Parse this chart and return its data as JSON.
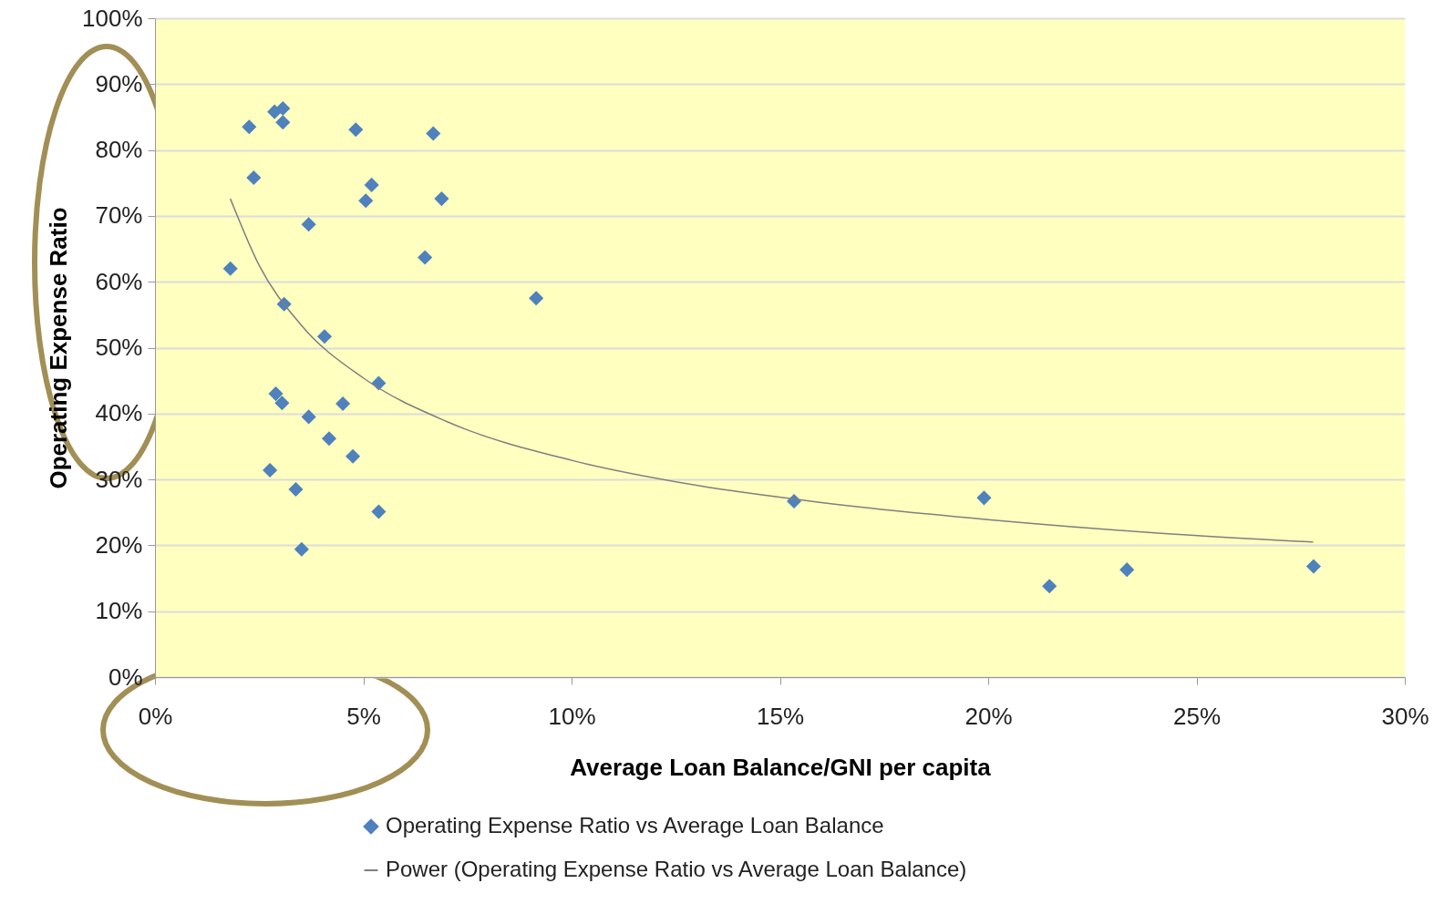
{
  "chart_data": {
    "type": "scatter",
    "xlabel": "Average Loan Balance/GNI per capita",
    "ylabel": "Operating Expense Ratio",
    "xlim": [
      0,
      30
    ],
    "xticks": [
      {
        "value": 0,
        "label": "0%"
      },
      {
        "value": 5,
        "label": "5%"
      },
      {
        "value": 10,
        "label": "10%"
      },
      {
        "value": 15,
        "label": "15%"
      },
      {
        "value": 20,
        "label": "20%"
      },
      {
        "value": 25,
        "label": "25%"
      },
      {
        "value": 30,
        "label": "30%"
      }
    ],
    "ylim": [
      0,
      100
    ],
    "yticks": [
      {
        "value": 0,
        "label": "0%"
      },
      {
        "value": 10,
        "label": "10%"
      },
      {
        "value": 20,
        "label": "20%"
      },
      {
        "value": 30,
        "label": "30%"
      },
      {
        "value": 40,
        "label": "40%"
      },
      {
        "value": 50,
        "label": "50%"
      },
      {
        "value": 60,
        "label": "60%"
      },
      {
        "value": 70,
        "label": "70%"
      },
      {
        "value": 80,
        "label": "80%"
      },
      {
        "value": 90,
        "label": "90%"
      },
      {
        "value": 100,
        "label": "100%"
      }
    ],
    "grid": "y",
    "legend": "bottom",
    "series": [
      {
        "name": "Operating Expense Ratio vs Average Loan Balance",
        "marker": "diamond",
        "color": "#4f81bd",
        "x": [
          1.81,
          2.26,
          2.37,
          2.87,
          3.07,
          3.07,
          3.1,
          2.76,
          2.9,
          3.05,
          3.38,
          3.52,
          3.69,
          3.69,
          4.07,
          4.18,
          4.51,
          4.75,
          4.82,
          5.06,
          5.2,
          5.37,
          5.37,
          6.48,
          6.68,
          6.88,
          9.15,
          15.34,
          19.9,
          21.47,
          23.33,
          27.81
        ],
        "values": [
          62.0,
          83.5,
          75.8,
          85.8,
          86.3,
          84.2,
          56.6,
          31.4,
          43.0,
          41.6,
          28.5,
          19.4,
          68.7,
          39.5,
          51.7,
          36.2,
          41.5,
          33.5,
          83.1,
          72.3,
          74.7,
          44.6,
          25.1,
          63.7,
          82.5,
          72.6,
          57.5,
          26.7,
          27.2,
          13.8,
          16.3,
          16.8
        ]
      },
      {
        "name": "Power (Operating Expense Ratio vs Average Loan Balance)",
        "type": "line",
        "marker": "none",
        "color": "#7f7f7f",
        "x": [
          1.81,
          2.5,
          3.5,
          5,
          7,
          10,
          13,
          16,
          20,
          24,
          27.8
        ],
        "values": [
          72.6,
          62.5,
          53.5,
          45.4,
          38.8,
          32.9,
          29.1,
          26.5,
          23.9,
          21.9,
          20.5
        ]
      }
    ]
  }
}
